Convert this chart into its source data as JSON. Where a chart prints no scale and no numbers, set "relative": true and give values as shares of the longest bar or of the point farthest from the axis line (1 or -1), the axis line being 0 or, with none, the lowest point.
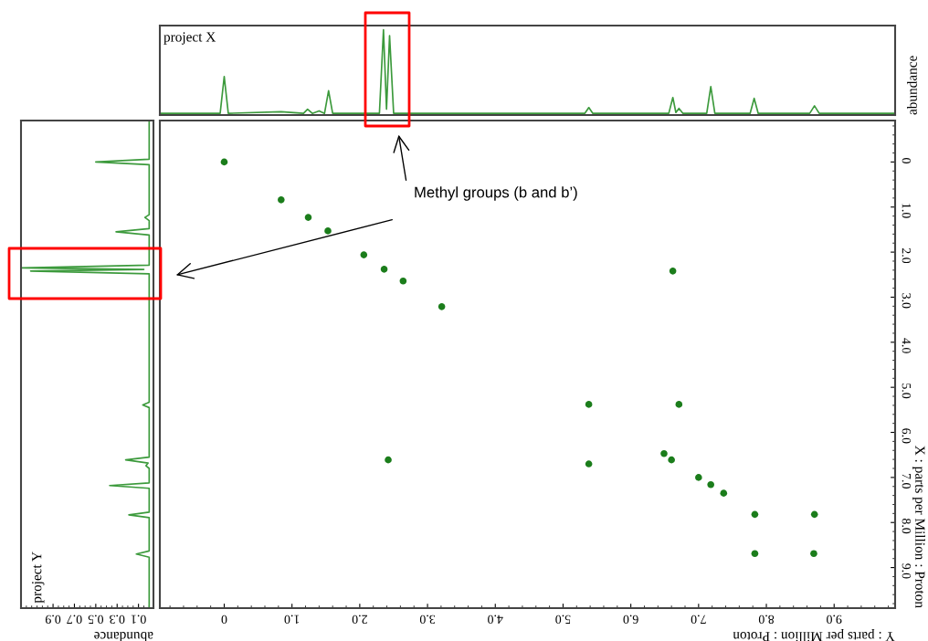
{
  "chart_data": [
    {
      "type": "line",
      "title": "project X",
      "ylabel": "abundance",
      "relative": true,
      "xlim": [
        -0.95,
        9.9
      ],
      "tick_labels": false,
      "x": [
        -0.95,
        -0.06,
        0.0,
        0.06,
        0.84,
        1.17,
        1.23,
        1.3,
        1.4,
        1.48,
        1.54,
        1.6,
        2.29,
        2.35,
        2.395,
        2.44,
        2.5,
        5.32,
        5.38,
        5.44,
        6.56,
        6.62,
        6.665,
        6.71,
        6.77,
        7.12,
        7.18,
        7.24,
        7.76,
        7.82,
        7.88,
        8.64,
        8.71,
        8.78,
        9.9
      ],
      "series": [
        {
          "color": "#3c9a3c",
          "values": [
            0,
            0,
            0.44,
            0,
            0.02,
            0,
            0.05,
            0,
            0.03,
            0,
            0.27,
            0,
            0,
            1.0,
            0.05,
            0.93,
            0,
            0,
            0.07,
            0,
            0,
            0.19,
            0.01,
            0.06,
            0,
            0,
            0.32,
            0,
            0,
            0.18,
            0,
            0,
            0.09,
            0,
            0
          ]
        }
      ]
    },
    {
      "type": "line",
      "orientation": "horizontal",
      "title": "project Y",
      "xlabel": "abundance",
      "xlim": [
        1.2,
        -0.04
      ],
      "xticks": [
        0.1,
        0.3,
        0.5,
        0.7,
        0.9
      ],
      "ylim": [
        9.9,
        -0.92
      ],
      "tick_labels": "x",
      "x": [
        -0.92,
        -0.06,
        0.0,
        0.06,
        1.17,
        1.23,
        1.3,
        1.48,
        1.55,
        1.62,
        2.29,
        2.35,
        2.385,
        2.42,
        2.48,
        5.33,
        5.39,
        5.45,
        6.55,
        6.61,
        6.68,
        6.74,
        6.8,
        7.12,
        7.18,
        7.24,
        7.77,
        7.83,
        7.89,
        8.63,
        8.7,
        8.77,
        9.9
      ],
      "series": [
        {
          "color": "#3c9a3c",
          "values": [
            0,
            0,
            0.5,
            0,
            0,
            0.04,
            0,
            0,
            0.31,
            0,
            0,
            1.19,
            0.05,
            1.11,
            0,
            0,
            0.06,
            0,
            0,
            0.22,
            0.01,
            0.03,
            0,
            0,
            0.37,
            0,
            0,
            0.19,
            0,
            0,
            0.12,
            0,
            0
          ]
        }
      ]
    },
    {
      "type": "scatter",
      "xlabel": "Y : parts per Million : Proton",
      "ylabel": "X : parts per Million : Proton",
      "marker": "circle",
      "xlim": [
        -0.95,
        9.9
      ],
      "ylim": [
        9.9,
        -0.92
      ],
      "xticks": [
        {
          "value": 0,
          "label": "0"
        },
        {
          "value": 1,
          "label": "1.0"
        },
        {
          "value": 2,
          "label": "2.0"
        },
        {
          "value": 3,
          "label": "3.0"
        },
        {
          "value": 4,
          "label": "4.0"
        },
        {
          "value": 5,
          "label": "5.0"
        },
        {
          "value": 6,
          "label": "6.0"
        },
        {
          "value": 7,
          "label": "7.0"
        },
        {
          "value": 8,
          "label": "8.0"
        },
        {
          "value": 9,
          "label": "9.0"
        }
      ],
      "yticks": [
        {
          "value": 0,
          "label": "0"
        },
        {
          "value": 1,
          "label": "1.0"
        },
        {
          "value": 2,
          "label": "2.0"
        },
        {
          "value": 3,
          "label": "3.0"
        },
        {
          "value": 4,
          "label": "4.0"
        },
        {
          "value": 5,
          "label": "5.0"
        },
        {
          "value": 6,
          "label": "6.0"
        },
        {
          "value": 7,
          "label": "7.0"
        },
        {
          "value": 8,
          "label": "8.0"
        },
        {
          "value": 9,
          "label": "9.0"
        }
      ],
      "annotations": [
        "Methyl groups (b and b’)"
      ],
      "x": [
        0.0,
        0.84,
        1.24,
        1.53,
        2.06,
        2.36,
        2.64,
        3.21,
        6.62,
        2.42,
        5.38,
        6.71,
        5.38,
        6.49,
        6.6,
        7.0,
        7.18,
        7.37,
        7.83,
        8.71,
        7.83,
        8.7
      ],
      "series": [
        {
          "color": "#1b7d1b",
          "values": [
            0.0,
            0.84,
            1.23,
            1.53,
            2.06,
            2.38,
            2.64,
            3.21,
            2.42,
            6.61,
            5.38,
            5.38,
            6.7,
            6.47,
            6.61,
            7.0,
            7.16,
            7.35,
            7.82,
            7.82,
            8.69,
            8.69
          ]
        }
      ]
    }
  ]
}
